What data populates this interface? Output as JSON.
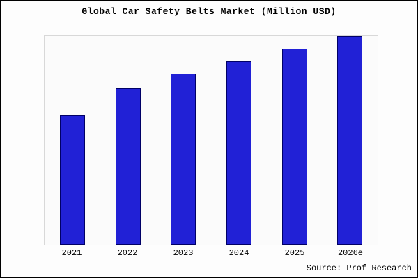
{
  "title": "Global Car Safety Belts Market (Million USD)",
  "source": "Source: Prof Research",
  "chart_data": {
    "type": "bar",
    "title": "Global Car Safety Belts Market (Million USD)",
    "categories": [
      "2021",
      "2022",
      "2023",
      "2024",
      "2025",
      "2026e"
    ],
    "values": [
      62,
      75,
      82,
      88,
      94,
      100
    ],
    "xlabel": "",
    "ylabel": "",
    "ylim": [
      0,
      100
    ],
    "grid": false,
    "y_axis_tick_labels_visible": false,
    "legend": "none",
    "bar_color": "#2121d6",
    "bar_border_color": "#000066",
    "annotation": "Source: Prof Research"
  }
}
